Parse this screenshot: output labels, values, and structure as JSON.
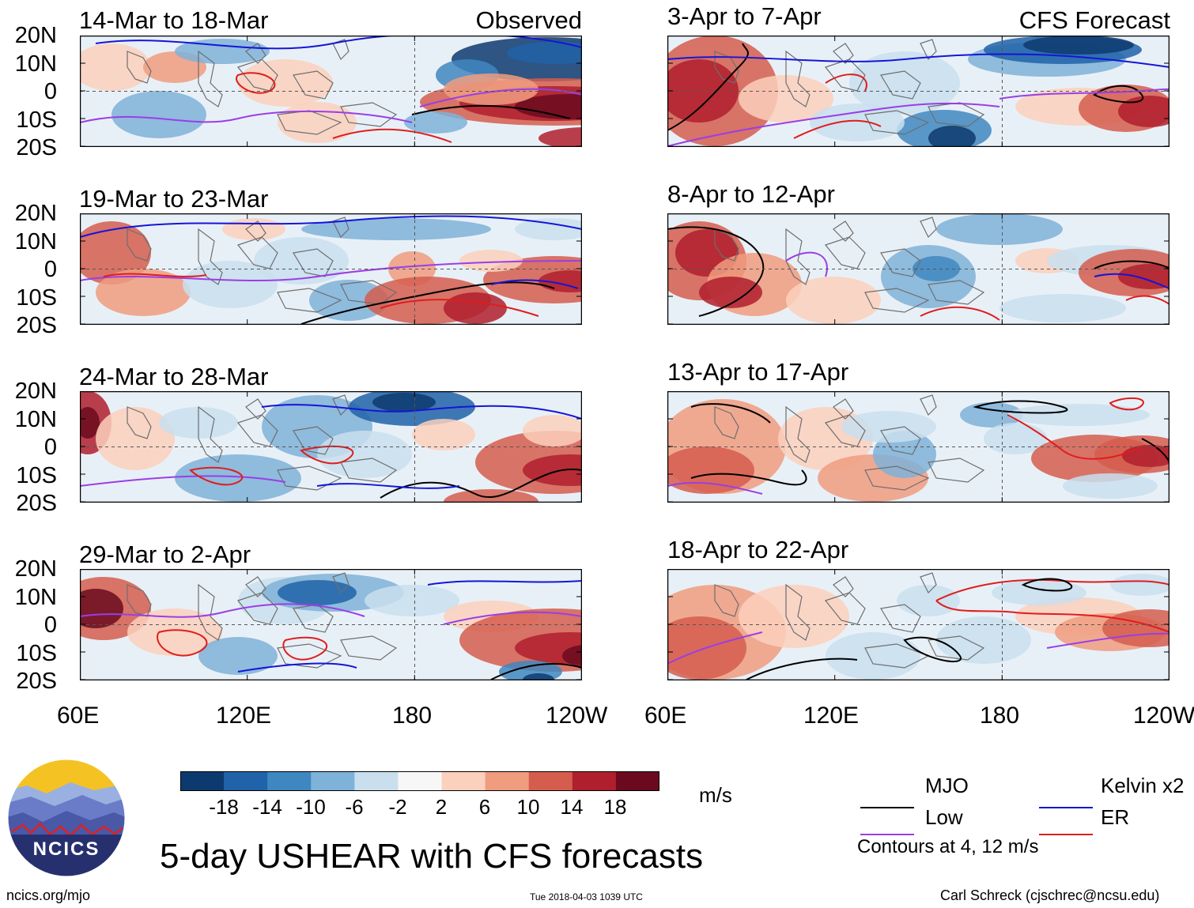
{
  "chart_data": {
    "type": "heatmap",
    "title": "5-day USHEAR with CFS forecasts",
    "variable": "USHEAR",
    "units": "m/s",
    "left_column_label": "Observed",
    "right_column_label": "CFS Forecast",
    "lat_ticks": [
      "20N",
      "10N",
      "0",
      "10S",
      "20S"
    ],
    "lon_ticks": [
      "60E",
      "120E",
      "180",
      "120W"
    ],
    "lat_range": [
      -20,
      20
    ],
    "lon_range": [
      60,
      240
    ],
    "observed_periods": [
      "14-Mar to 18-Mar",
      "19-Mar to 23-Mar",
      "24-Mar to 28-Mar",
      "29-Mar to 2-Apr"
    ],
    "forecast_periods": [
      "3-Apr to 7-Apr",
      "8-Apr to 12-Apr",
      "13-Apr to 17-Apr",
      "18-Apr to 22-Apr"
    ],
    "colorbar": {
      "levels": [
        -18,
        -14,
        -10,
        -6,
        -2,
        2,
        6,
        10,
        14,
        18
      ],
      "tick_labels": [
        "-18",
        "-14",
        "-10",
        "-6",
        "-2",
        "2",
        "6",
        "10",
        "14",
        "18"
      ],
      "colors": [
        "#0d3a6e",
        "#2063a8",
        "#3f87c0",
        "#7fb2d8",
        "#c9dfee",
        "#f7f7f7",
        "#fbd0bc",
        "#f09c7f",
        "#d55d4e",
        "#b01f2d",
        "#6b0a1e"
      ]
    },
    "legend": [
      {
        "label": "MJO",
        "color": "#000000"
      },
      {
        "label": "Kelvin x2",
        "color": "#1515d8"
      },
      {
        "label": "Low",
        "color": "#9a3ee6"
      },
      {
        "label": "ER",
        "color": "#e01d1d"
      }
    ],
    "contour_note": "Contours at 4, 12 m/s"
  },
  "branding": {
    "logo_text": "NCICS",
    "url": "ncics.org/mjo",
    "timestamp": "Tue 2018-04-03 1039 UTC",
    "author": "Carl Schreck (cjschrec@ncsu.edu)"
  }
}
